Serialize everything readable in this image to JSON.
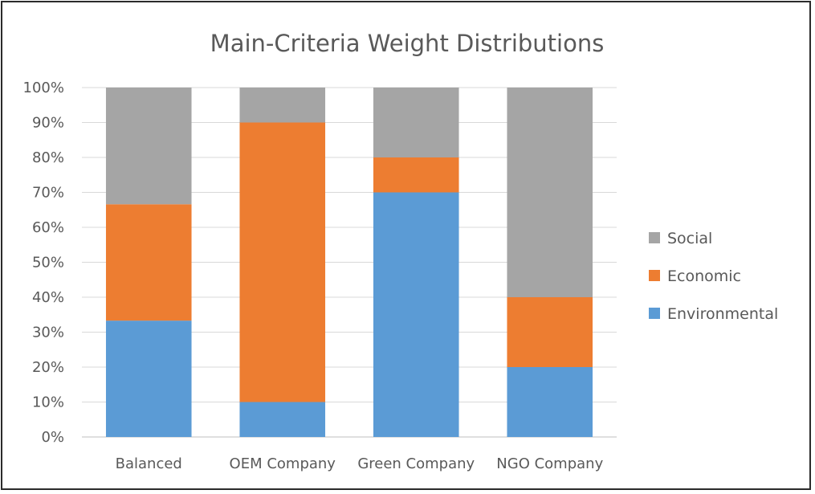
{
  "chart_data": {
    "type": "bar",
    "stacked": true,
    "title": "Main-Criteria Weight Distributions",
    "categories": [
      "Balanced",
      "OEM Company",
      "Green Company",
      "NGO Company"
    ],
    "series": [
      {
        "name": "Environmental",
        "values": [
          33.3,
          10,
          70,
          20
        ],
        "color": "#5b9bd5"
      },
      {
        "name": "Economic",
        "values": [
          33.3,
          80,
          10,
          20
        ],
        "color": "#ed7d31"
      },
      {
        "name": "Social",
        "values": [
          33.4,
          10,
          20,
          60
        ],
        "color": "#a5a5a5"
      }
    ],
    "yticks": [
      "0%",
      "10%",
      "20%",
      "30%",
      "40%",
      "50%",
      "60%",
      "70%",
      "80%",
      "90%",
      "100%"
    ],
    "ylim": [
      0,
      100
    ],
    "grid": true,
    "legend_position": "right"
  }
}
